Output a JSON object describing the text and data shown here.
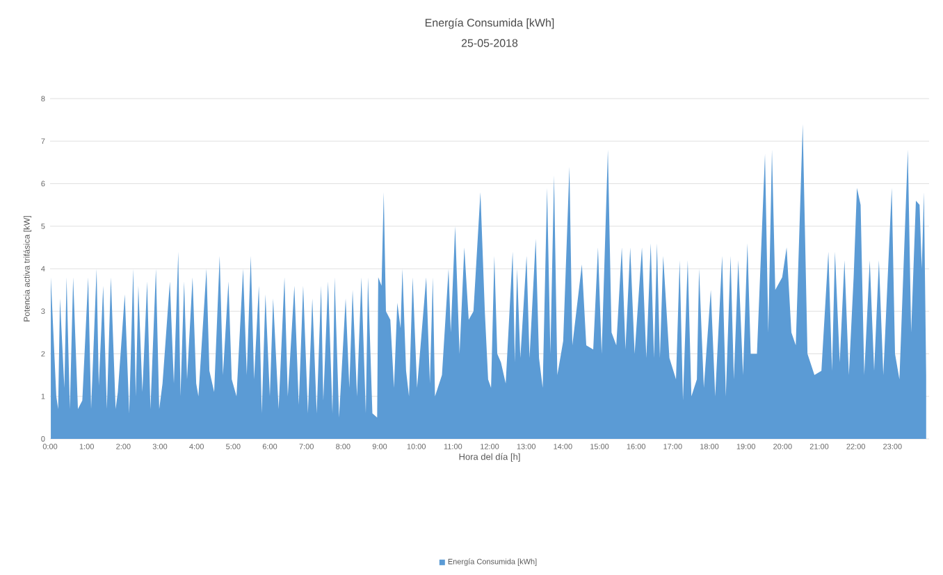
{
  "chart_data": {
    "type": "area",
    "title": "Energía Consumida [kWh]",
    "subtitle": "25-05-2018",
    "xlabel": "Hora del día [h]",
    "ylabel": "Potencia activa trifásica [kW]",
    "xlim": [
      0,
      24
    ],
    "ylim": [
      0,
      8
    ],
    "xticks": [
      {
        "value": 0,
        "label": "0:00"
      },
      {
        "value": 1,
        "label": "1:00"
      },
      {
        "value": 2,
        "label": "2:00"
      },
      {
        "value": 3,
        "label": "3:00"
      },
      {
        "value": 4,
        "label": "4:00"
      },
      {
        "value": 5,
        "label": "5:00"
      },
      {
        "value": 6,
        "label": "6:00"
      },
      {
        "value": 7,
        "label": "7:00"
      },
      {
        "value": 8,
        "label": "8:00"
      },
      {
        "value": 9,
        "label": "9:00"
      },
      {
        "value": 10,
        "label": "10:00"
      },
      {
        "value": 11,
        "label": "11:00"
      },
      {
        "value": 12,
        "label": "12:00"
      },
      {
        "value": 13,
        "label": "13:00"
      },
      {
        "value": 14,
        "label": "14:00"
      },
      {
        "value": 15,
        "label": "15:00"
      },
      {
        "value": 16,
        "label": "16:00"
      },
      {
        "value": 17,
        "label": "17:00"
      },
      {
        "value": 18,
        "label": "18:00"
      },
      {
        "value": 19,
        "label": "19:00"
      },
      {
        "value": 20,
        "label": "20:00"
      },
      {
        "value": 21,
        "label": "21:00"
      },
      {
        "value": 22,
        "label": "22:00"
      },
      {
        "value": 23,
        "label": "23:00"
      }
    ],
    "yticks": [
      0,
      1,
      2,
      3,
      4,
      5,
      6,
      7,
      8
    ],
    "grid": "y",
    "legend": "bottom",
    "series": [
      {
        "name": "Energía Consumida [kWh]",
        "color": "#5b9bd5",
        "x": [
          0.02,
          0.17,
          0.22,
          0.27,
          0.39,
          0.45,
          0.54,
          0.63,
          0.76,
          0.88,
          1.04,
          1.12,
          1.27,
          1.33,
          1.45,
          1.55,
          1.66,
          1.79,
          1.85,
          2.04,
          2.16,
          2.27,
          2.34,
          2.41,
          2.52,
          2.65,
          2.74,
          2.89,
          2.98,
          3.07,
          3.27,
          3.38,
          3.5,
          3.56,
          3.66,
          3.74,
          3.89,
          3.99,
          4.05,
          4.27,
          4.35,
          4.48,
          4.63,
          4.72,
          4.87,
          4.96,
          5.09,
          5.27,
          5.37,
          5.48,
          5.57,
          5.7,
          5.78,
          5.88,
          6.0,
          6.09,
          6.24,
          6.4,
          6.49,
          6.67,
          6.79,
          6.91,
          7.04,
          7.16,
          7.28,
          7.4,
          7.46,
          7.59,
          7.71,
          7.77,
          7.89,
          8.07,
          8.17,
          8.26,
          8.38,
          8.5,
          8.62,
          8.68,
          8.8,
          8.93,
          8.96,
          9.05,
          9.11,
          9.17,
          9.29,
          9.39,
          9.48,
          9.57,
          9.62,
          9.72,
          9.8,
          9.9,
          10.02,
          10.27,
          10.37,
          10.45,
          10.51,
          10.7,
          10.88,
          10.94,
          11.06,
          11.18,
          11.31,
          11.43,
          11.56,
          11.75,
          11.87,
          11.96,
          12.04,
          12.13,
          12.21,
          12.31,
          12.44,
          12.63,
          12.69,
          12.75,
          12.84,
          13.01,
          13.09,
          13.26,
          13.35,
          13.45,
          13.57,
          13.66,
          13.76,
          13.85,
          14.01,
          14.18,
          14.26,
          14.52,
          14.64,
          14.83,
          14.96,
          15.06,
          15.23,
          15.33,
          15.46,
          15.61,
          15.71,
          15.84,
          15.96,
          16.16,
          16.28,
          16.4,
          16.49,
          16.57,
          16.65,
          16.74,
          16.91,
          17.09,
          17.19,
          17.28,
          17.41,
          17.51,
          17.66,
          17.72,
          17.85,
          18.04,
          18.16,
          18.35,
          18.45,
          18.58,
          18.67,
          18.79,
          18.92,
          19.04,
          19.13,
          19.3,
          19.52,
          19.61,
          19.71,
          19.8,
          19.99,
          20.11,
          20.24,
          20.36,
          20.55,
          20.68,
          20.87,
          21.06,
          21.25,
          21.35,
          21.43,
          21.56,
          21.69,
          21.81,
          21.94,
          22.03,
          22.13,
          22.23,
          22.38,
          22.5,
          22.63,
          22.75,
          22.98,
          23.07,
          23.19,
          23.42,
          23.51,
          23.64,
          23.74,
          23.8,
          23.86,
          23.92
        ],
        "values": [
          3.8,
          1.0,
          0.7,
          3.3,
          1.2,
          3.8,
          0.7,
          3.8,
          0.7,
          0.9,
          3.8,
          0.7,
          4.0,
          1.25,
          3.6,
          0.7,
          3.8,
          0.7,
          1.1,
          3.4,
          0.6,
          4.0,
          1.0,
          3.6,
          1.1,
          3.7,
          0.7,
          4.0,
          0.7,
          1.3,
          3.7,
          1.3,
          4.4,
          1.0,
          3.7,
          1.4,
          3.8,
          1.3,
          1.0,
          4.0,
          1.6,
          1.1,
          4.3,
          1.5,
          3.7,
          1.4,
          1.0,
          4.0,
          1.5,
          4.3,
          1.4,
          3.6,
          0.6,
          3.4,
          1.0,
          3.3,
          0.7,
          3.8,
          1.0,
          3.6,
          0.8,
          3.6,
          0.6,
          3.3,
          0.6,
          3.6,
          0.9,
          3.7,
          0.6,
          3.8,
          0.5,
          3.3,
          1.2,
          3.5,
          1.0,
          3.8,
          0.6,
          3.8,
          0.6,
          0.5,
          3.8,
          3.6,
          5.8,
          3.0,
          2.8,
          1.2,
          3.2,
          2.6,
          4.0,
          1.6,
          1.0,
          3.8,
          1.2,
          3.8,
          1.3,
          3.8,
          1.0,
          1.5,
          4.0,
          2.5,
          5.0,
          2.0,
          4.5,
          2.8,
          3.0,
          5.8,
          3.0,
          1.4,
          1.2,
          4.3,
          2.0,
          1.8,
          1.3,
          4.4,
          1.8,
          4.0,
          1.9,
          4.3,
          1.9,
          4.7,
          1.9,
          1.2,
          5.9,
          2.0,
          6.2,
          1.5,
          2.3,
          6.4,
          2.2,
          4.1,
          2.2,
          2.1,
          4.5,
          2.0,
          6.8,
          2.5,
          2.2,
          4.5,
          2.1,
          4.5,
          2.0,
          4.5,
          1.9,
          4.6,
          1.9,
          4.6,
          1.9,
          4.3,
          1.9,
          1.4,
          4.2,
          0.9,
          4.2,
          1.0,
          1.4,
          4.0,
          1.2,
          3.5,
          1.0,
          4.3,
          1.0,
          4.3,
          1.4,
          4.2,
          1.5,
          4.6,
          2.0,
          2.0,
          6.7,
          2.5,
          6.8,
          3.5,
          3.8,
          4.5,
          2.5,
          2.2,
          7.4,
          2.0,
          1.5,
          1.6,
          4.4,
          1.6,
          4.4,
          1.8,
          4.2,
          1.5,
          3.8,
          5.9,
          5.5,
          1.5,
          4.2,
          1.6,
          4.2,
          1.5,
          5.9,
          2.0,
          1.4,
          6.8,
          2.5,
          5.6,
          5.5,
          4.0,
          5.8,
          1.5
        ]
      }
    ]
  }
}
